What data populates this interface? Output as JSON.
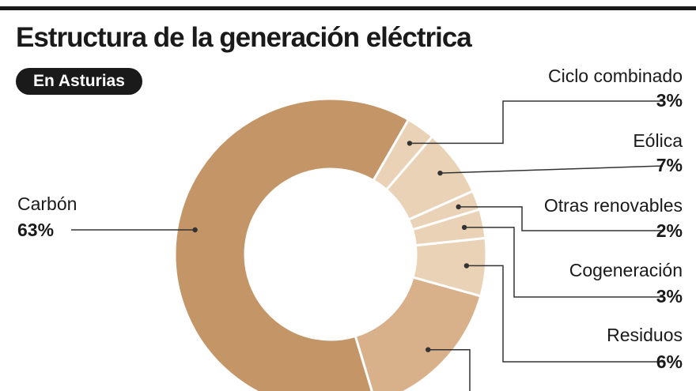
{
  "header": {
    "title": "Estructura de la generación eléctrica",
    "badge": "En Asturias"
  },
  "colors": {
    "dark": "#1a1a1a",
    "slice_carbon": "#c49566",
    "slice_light": "#e9d2b6",
    "slice_mid": "#d8b089",
    "line": "#333333"
  },
  "chart_data": {
    "type": "pie",
    "style": "donut",
    "title": "Estructura de la generación eléctrica",
    "subtitle": "En Asturias",
    "unit": "%",
    "slices": [
      {
        "label": "Ciclo combinado",
        "value": 3,
        "display": "3%",
        "color": "#e9d2b6"
      },
      {
        "label": "Eólica",
        "value": 7,
        "display": "7%",
        "color": "#e9d2b6"
      },
      {
        "label": "Otras renovables",
        "value": 2,
        "display": "2%",
        "color": "#e9d2b6"
      },
      {
        "label": "Cogeneración",
        "value": 3,
        "display": "3%",
        "color": "#e9d2b6"
      },
      {
        "label": "Residuos",
        "value": 6,
        "display": "6%",
        "color": "#e9d2b6"
      },
      {
        "label": "",
        "value": 16,
        "display": "",
        "color": "#d8b089"
      },
      {
        "label": "Carbón",
        "value": 63,
        "display": "63%",
        "color": "#c49566"
      }
    ]
  }
}
